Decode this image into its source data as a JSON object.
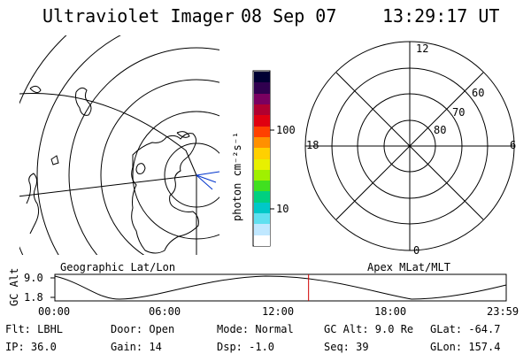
{
  "header": {
    "title": "Ultraviolet Imager",
    "date": "08 Sep 07",
    "time": "13:29:17 UT"
  },
  "colorbar": {
    "unit_label": "photon cm⁻²s⁻¹",
    "ticks": [
      "100",
      "10"
    ],
    "colors": [
      "#000033",
      "#30004f",
      "#7a0060",
      "#b00030",
      "#e00010",
      "#ff4000",
      "#ff9000",
      "#ffd000",
      "#e8f000",
      "#a0f000",
      "#40e020",
      "#00d080",
      "#00c8c8",
      "#60e0f0",
      "#c0e8ff",
      "#ffffff"
    ]
  },
  "left_panel": {
    "caption": "Geographic Lat/Lon"
  },
  "right_panel": {
    "caption": "Apex MLat/MLT",
    "mlt_labels": [
      "12",
      "18",
      "6",
      "0"
    ],
    "mlat_labels": [
      "60",
      "70",
      "80"
    ]
  },
  "altitude_plot": {
    "ylabel": "GC Alt",
    "yticks": [
      "9.0",
      "1.8"
    ],
    "xticks": [
      "00:00",
      "06:00",
      "12:00",
      "18:00",
      "23:59"
    ],
    "current_time_marker_hours": 13.49,
    "marker_color": "#d00000"
  },
  "footer": {
    "flt": "Flt: LBHL",
    "ip": "IP: 36.0",
    "door": "Door: Open",
    "gain": "Gain: 14",
    "mode": "Mode: Normal",
    "dsp": "Dsp:   -1.0",
    "gcalt": "GC Alt: 9.0 Re",
    "seq": "Seq: 39",
    "glat": "GLat: -64.7",
    "glon": "GLon: 157.4"
  }
}
